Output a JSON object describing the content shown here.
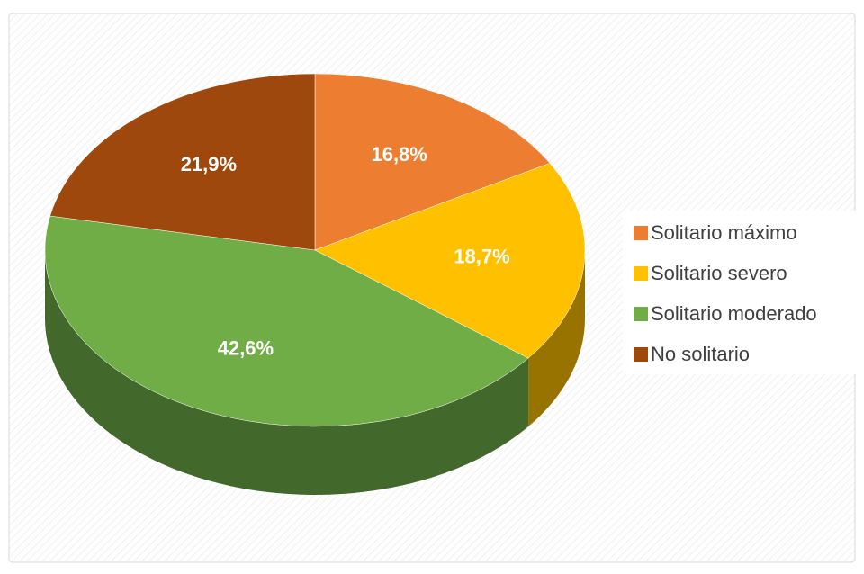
{
  "chart_data": {
    "type": "pie",
    "categories": [
      "Solitario máximo",
      "Solitario severo",
      "Solitario moderado",
      "No solitario"
    ],
    "values": [
      16.8,
      18.7,
      42.6,
      21.9
    ],
    "value_labels": [
      "16,8%",
      "18,7%",
      "42,6%",
      "21,9%"
    ],
    "colors": [
      "#ED7D31",
      "#FFC000",
      "#70AD47",
      "#9E480E"
    ],
    "legend": "right"
  }
}
